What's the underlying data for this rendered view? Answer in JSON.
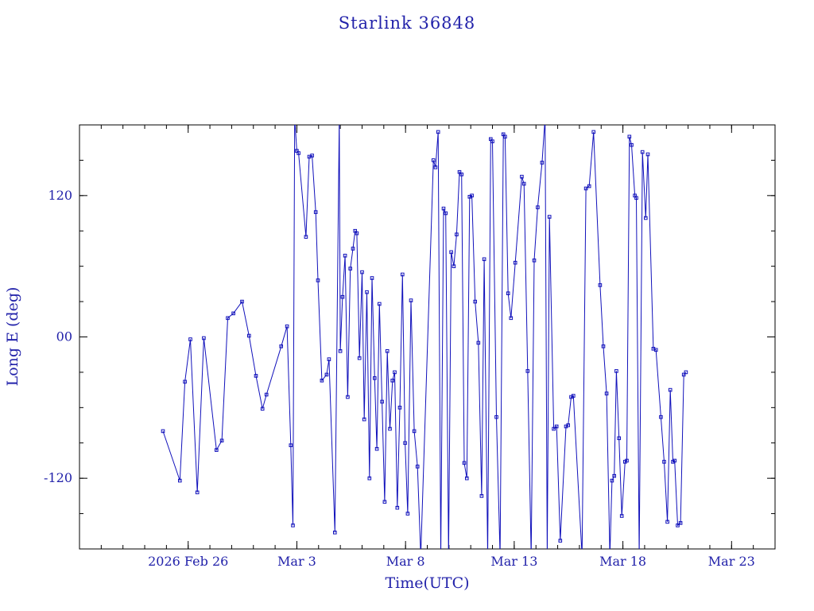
{
  "window": {
    "background": "#ffffff"
  },
  "chart_data": {
    "type": "line",
    "title": "Starlink 36848",
    "xlabel": "Time(UTC)",
    "ylabel": "Long E (deg)",
    "legend": "none",
    "grid": false,
    "marker": "open-square",
    "x_range_days": [
      0,
      32
    ],
    "y_range": [
      -180,
      180
    ],
    "x_major_ticks": [
      {
        "day": 5,
        "label": "2026 Feb 26"
      },
      {
        "day": 10,
        "label": "Mar 3"
      },
      {
        "day": 15,
        "label": "Mar 8"
      },
      {
        "day": 20,
        "label": "Mar 13"
      },
      {
        "day": 25,
        "label": "Mar 18"
      },
      {
        "day": 30,
        "label": "Mar 23"
      }
    ],
    "x_minor_tick_step_days": 1,
    "y_major_ticks": [
      {
        "value": 120,
        "label": "120"
      },
      {
        "value": 0,
        "label": "00"
      },
      {
        "value": -120,
        "label": "-120"
      }
    ],
    "y_minor_tick_step": 30,
    "colors": {
      "text": "#2222aa",
      "series": "#1111bb",
      "frame": "#000000",
      "background": "#ffffff"
    },
    "points_day_deg": [
      [
        3.84,
        -80
      ],
      [
        4.62,
        -122
      ],
      [
        4.85,
        -38
      ],
      [
        5.1,
        -2
      ],
      [
        5.42,
        -132
      ],
      [
        5.72,
        -1
      ],
      [
        6.3,
        -96
      ],
      [
        6.55,
        -88
      ],
      [
        6.82,
        16
      ],
      [
        7.08,
        20
      ],
      [
        7.48,
        30
      ],
      [
        7.8,
        1
      ],
      [
        8.12,
        -33
      ],
      [
        8.42,
        -61
      ],
      [
        8.6,
        -49
      ],
      [
        9.28,
        -8
      ],
      [
        9.55,
        9
      ],
      [
        9.72,
        -92
      ],
      [
        9.82,
        -160
      ],
      [
        9.9,
        186
      ],
      [
        10.0,
        158
      ],
      [
        10.08,
        156
      ],
      [
        10.42,
        85
      ],
      [
        10.57,
        153
      ],
      [
        10.7,
        154
      ],
      [
        10.87,
        106
      ],
      [
        10.97,
        48
      ],
      [
        11.15,
        -37
      ],
      [
        11.37,
        -32
      ],
      [
        11.48,
        -19
      ],
      [
        11.75,
        -166
      ],
      [
        11.95,
        186
      ],
      [
        12.0,
        -12
      ],
      [
        12.1,
        34
      ],
      [
        12.22,
        69
      ],
      [
        12.34,
        -51
      ],
      [
        12.46,
        58
      ],
      [
        12.58,
        75
      ],
      [
        12.68,
        90
      ],
      [
        12.76,
        88
      ],
      [
        12.88,
        -18
      ],
      [
        13.0,
        55
      ],
      [
        13.1,
        -70
      ],
      [
        13.22,
        38
      ],
      [
        13.34,
        -120
      ],
      [
        13.46,
        50
      ],
      [
        13.58,
        -35
      ],
      [
        13.68,
        -95
      ],
      [
        13.8,
        28
      ],
      [
        13.92,
        -55
      ],
      [
        14.04,
        -140
      ],
      [
        14.16,
        -12
      ],
      [
        14.28,
        -78
      ],
      [
        14.4,
        -37
      ],
      [
        14.5,
        -30
      ],
      [
        14.62,
        -145
      ],
      [
        14.74,
        -60
      ],
      [
        14.86,
        53
      ],
      [
        14.98,
        -90
      ],
      [
        15.1,
        -150
      ],
      [
        15.25,
        31
      ],
      [
        15.4,
        -80
      ],
      [
        15.55,
        -110
      ],
      [
        15.7,
        -186
      ],
      [
        16.28,
        150
      ],
      [
        16.38,
        144
      ],
      [
        16.5,
        174
      ],
      [
        16.62,
        -186
      ],
      [
        16.75,
        109
      ],
      [
        16.85,
        105
      ],
      [
        16.98,
        -186
      ],
      [
        17.1,
        72
      ],
      [
        17.22,
        60
      ],
      [
        17.35,
        87
      ],
      [
        17.48,
        140
      ],
      [
        17.58,
        138
      ],
      [
        17.7,
        -107
      ],
      [
        17.82,
        -120
      ],
      [
        17.95,
        119
      ],
      [
        18.05,
        120
      ],
      [
        18.2,
        30
      ],
      [
        18.35,
        -5
      ],
      [
        18.5,
        -135
      ],
      [
        18.62,
        66
      ],
      [
        18.78,
        -186
      ],
      [
        18.92,
        168
      ],
      [
        19.0,
        166
      ],
      [
        19.18,
        -68
      ],
      [
        19.35,
        -186
      ],
      [
        19.5,
        172
      ],
      [
        19.58,
        170
      ],
      [
        19.72,
        37
      ],
      [
        19.85,
        16
      ],
      [
        20.05,
        63
      ],
      [
        20.35,
        136
      ],
      [
        20.45,
        130
      ],
      [
        20.62,
        -29
      ],
      [
        20.78,
        -186
      ],
      [
        20.92,
        65
      ],
      [
        21.08,
        110
      ],
      [
        21.28,
        148
      ],
      [
        21.42,
        186
      ],
      [
        21.52,
        -186
      ],
      [
        21.62,
        102
      ],
      [
        21.82,
        -78
      ],
      [
        21.95,
        -76
      ],
      [
        22.12,
        -173
      ],
      [
        22.38,
        -76
      ],
      [
        22.48,
        -75
      ],
      [
        22.62,
        -51
      ],
      [
        22.72,
        -50
      ],
      [
        23.12,
        -186
      ],
      [
        23.3,
        126
      ],
      [
        23.45,
        128
      ],
      [
        23.65,
        174
      ],
      [
        23.95,
        44
      ],
      [
        24.1,
        -8
      ],
      [
        24.25,
        -48
      ],
      [
        24.4,
        -186
      ],
      [
        24.5,
        -122
      ],
      [
        24.6,
        -118
      ],
      [
        24.7,
        -29
      ],
      [
        24.82,
        -86
      ],
      [
        24.95,
        -152
      ],
      [
        25.1,
        -106
      ],
      [
        25.18,
        -105
      ],
      [
        25.3,
        170
      ],
      [
        25.4,
        163
      ],
      [
        25.55,
        120
      ],
      [
        25.62,
        118
      ],
      [
        25.75,
        -186
      ],
      [
        25.9,
        157
      ],
      [
        26.05,
        101
      ],
      [
        26.15,
        155
      ],
      [
        26.4,
        -10
      ],
      [
        26.52,
        -11
      ],
      [
        26.75,
        -68
      ],
      [
        26.9,
        -106
      ],
      [
        27.05,
        -157
      ],
      [
        27.18,
        -45
      ],
      [
        27.3,
        -106
      ],
      [
        27.38,
        -105
      ],
      [
        27.52,
        -160
      ],
      [
        27.65,
        -158
      ],
      [
        27.8,
        -32
      ],
      [
        27.9,
        -30
      ]
    ]
  }
}
